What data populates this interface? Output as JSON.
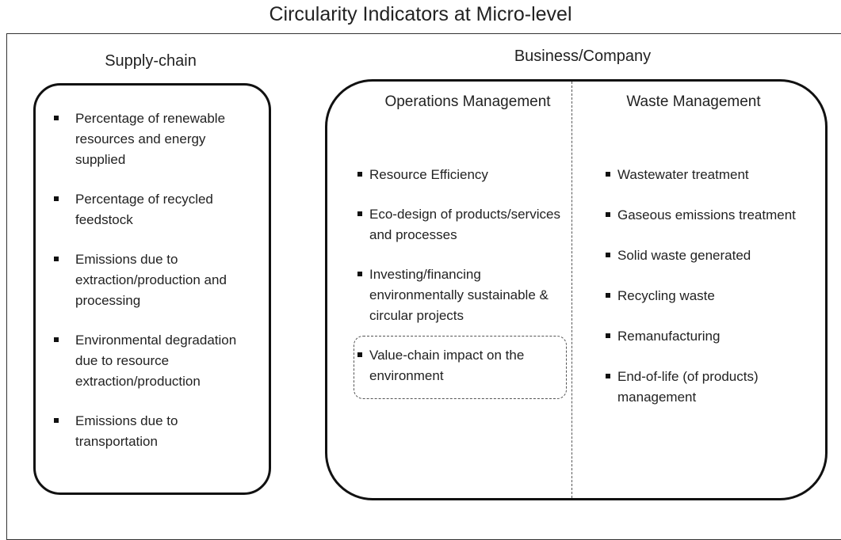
{
  "title": "Circularity Indicators at Micro-level",
  "supply_chain": {
    "heading": "Supply-chain",
    "items": [
      "Percentage of renewable resources and energy supplied",
      "Percentage of recycled feedstock",
      "Emissions due to extraction/production and processing",
      "Environmental degradation due to resource extraction/production",
      "Emissions due to transportation"
    ]
  },
  "business": {
    "heading": "Business/Company",
    "columns": [
      {
        "heading": "Operations Management",
        "items": [
          "Resource Efficiency",
          "Eco-design of products/services and processes",
          "Investing/financing environmentally sustainable & circular projects",
          "Value-chain impact on the environment"
        ]
      },
      {
        "heading": "Waste Management",
        "items": [
          "Wastewater treatment",
          "Gaseous emissions treatment",
          "Solid waste generated",
          "Recycling waste",
          "Remanufacturing",
          "End-of-life (of products) management"
        ]
      }
    ]
  }
}
